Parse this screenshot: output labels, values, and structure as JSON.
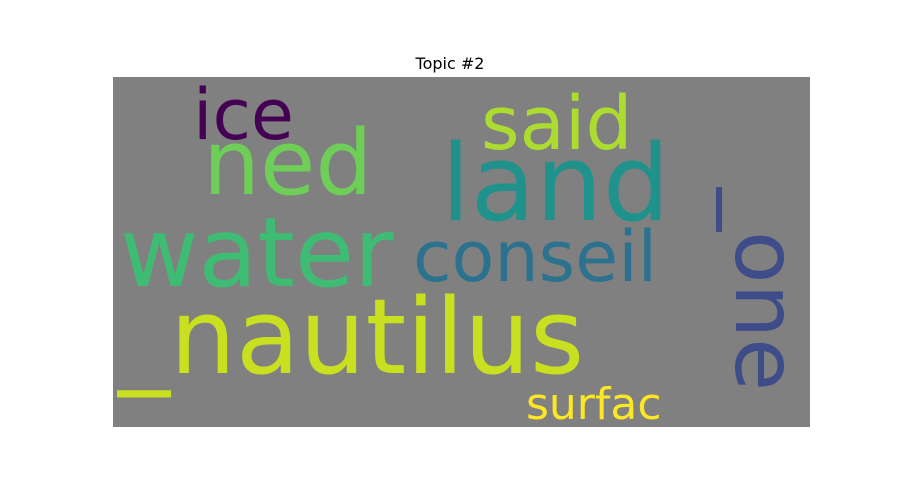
{
  "figure": {
    "title": "Topic #2",
    "background_color": "#808080"
  },
  "words": [
    {
      "key": "nautilus",
      "text": "_nautilus",
      "color": "#c8e020"
    },
    {
      "key": "land",
      "text": "land",
      "color": "#20928c"
    },
    {
      "key": "water",
      "text": "water",
      "color": "#3fbc73"
    },
    {
      "key": "ned",
      "text": "ned",
      "color": "#6ece58"
    },
    {
      "key": "conseil",
      "text": "conseil",
      "color": "#2c728e"
    },
    {
      "key": "said",
      "text": "said",
      "color": "#addc30"
    },
    {
      "key": "ice",
      "text": "ice",
      "color": "#440154"
    },
    {
      "key": "one",
      "text": "_one",
      "color": "#3e4c8a"
    },
    {
      "key": "surfac",
      "text": "surfac",
      "color": "#fde725"
    }
  ]
}
